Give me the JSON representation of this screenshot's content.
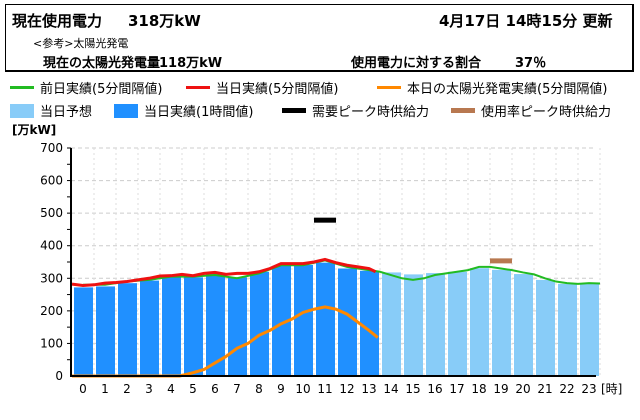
{
  "header": {
    "current_usage_label": "現在使用電力",
    "current_usage_value": "318万kW",
    "updated": "4月17日 14時15分 更新",
    "reference": "<参考>太陽光発電",
    "solar_label": "現在の太陽光発電量",
    "solar_value": "118万kW",
    "ratio_label": "使用電力に対する割合",
    "ratio_value": "37％"
  },
  "legend": [
    {
      "label": "前日実績(5分間隔値)",
      "color": "#22bb22",
      "kind": "line"
    },
    {
      "label": "当日実績(5分間隔値)",
      "color": "#ee1111",
      "kind": "line"
    },
    {
      "label": "本日の太陽光発電実績(5分間隔値)",
      "color": "#ff8800",
      "kind": "line"
    },
    {
      "label": "当日予想",
      "color": "#88ccf8",
      "kind": "box"
    },
    {
      "label": "当日実績(1時間値)",
      "color": "#2090ff",
      "kind": "box"
    },
    {
      "label": "需要ピーク時供給力",
      "color": "#000000",
      "kind": "dash"
    },
    {
      "label": "使用率ピーク時供給力",
      "color": "#b87850",
      "kind": "dash"
    }
  ],
  "chart_data": {
    "type": "bar",
    "ylabel": "[万kW]",
    "xlabel": "[時]",
    "ylim": [
      0,
      700
    ],
    "yticks": [
      0,
      100,
      200,
      300,
      400,
      500,
      600,
      700
    ],
    "categories": [
      "0",
      "1",
      "2",
      "3",
      "4",
      "5",
      "6",
      "7",
      "8",
      "9",
      "10",
      "11",
      "12",
      "13",
      "14",
      "15",
      "16",
      "17",
      "18",
      "19",
      "20",
      "21",
      "22",
      "23"
    ],
    "actual_hourly": [
      272,
      275,
      285,
      293,
      303,
      303,
      313,
      303,
      320,
      338,
      341,
      348,
      330,
      323
    ],
    "forecast_hourly": [
      null,
      null,
      null,
      null,
      null,
      null,
      null,
      null,
      null,
      null,
      null,
      null,
      null,
      null,
      318,
      312,
      316,
      320,
      331,
      326,
      313,
      295,
      283,
      285
    ],
    "demand_peak_supply": {
      "hour": 11,
      "value": 480
    },
    "usage_peak_supply": {
      "hour": 19,
      "value": 355
    },
    "prev_day": [
      [
        0,
        280
      ],
      [
        1,
        280
      ],
      [
        2,
        290
      ],
      [
        3,
        295
      ],
      [
        4,
        305
      ],
      [
        5,
        305
      ],
      [
        6,
        310
      ],
      [
        7,
        300
      ],
      [
        8,
        315
      ],
      [
        9,
        340
      ],
      [
        10,
        340
      ],
      [
        11,
        355
      ],
      [
        12,
        335
      ],
      [
        13,
        325
      ],
      [
        13.5,
        320
      ],
      [
        14,
        310
      ],
      [
        14.5,
        300
      ],
      [
        15,
        295
      ],
      [
        15.5,
        300
      ],
      [
        16,
        310
      ],
      [
        16.5,
        315
      ],
      [
        17,
        320
      ],
      [
        17.5,
        325
      ],
      [
        18,
        335
      ],
      [
        18.5,
        335
      ],
      [
        19,
        330
      ],
      [
        19.5,
        325
      ],
      [
        20,
        318
      ],
      [
        20.5,
        312
      ],
      [
        21,
        300
      ],
      [
        21.5,
        290
      ],
      [
        22,
        285
      ],
      [
        22.5,
        283
      ],
      [
        23,
        285
      ],
      [
        23.5,
        284
      ]
    ],
    "today": [
      [
        -0.5,
        282
      ],
      [
        0,
        278
      ],
      [
        0.5,
        280
      ],
      [
        1,
        285
      ],
      [
        1.5,
        287
      ],
      [
        2,
        290
      ],
      [
        2.5,
        295
      ],
      [
        3,
        300
      ],
      [
        3.5,
        307
      ],
      [
        4,
        308
      ],
      [
        4.5,
        312
      ],
      [
        5,
        308
      ],
      [
        5.5,
        315
      ],
      [
        6,
        318
      ],
      [
        6.5,
        312
      ],
      [
        7,
        315
      ],
      [
        7.5,
        315
      ],
      [
        8,
        320
      ],
      [
        8.5,
        330
      ],
      [
        9,
        345
      ],
      [
        9.5,
        345
      ],
      [
        10,
        345
      ],
      [
        10.5,
        350
      ],
      [
        11,
        358
      ],
      [
        11.5,
        348
      ],
      [
        12,
        340
      ],
      [
        12.5,
        335
      ],
      [
        13,
        330
      ],
      [
        13.3,
        320
      ]
    ],
    "solar": [
      [
        -0.5,
        0
      ],
      [
        4.4,
        0
      ],
      [
        5,
        10
      ],
      [
        5.5,
        20
      ],
      [
        6,
        40
      ],
      [
        6.5,
        60
      ],
      [
        7,
        85
      ],
      [
        7.5,
        100
      ],
      [
        8,
        125
      ],
      [
        8.5,
        140
      ],
      [
        9,
        160
      ],
      [
        9.5,
        175
      ],
      [
        10,
        195
      ],
      [
        10.5,
        205
      ],
      [
        11,
        212
      ],
      [
        11.5,
        205
      ],
      [
        12,
        190
      ],
      [
        12.5,
        165
      ],
      [
        13,
        140
      ],
      [
        13.4,
        118
      ]
    ]
  }
}
